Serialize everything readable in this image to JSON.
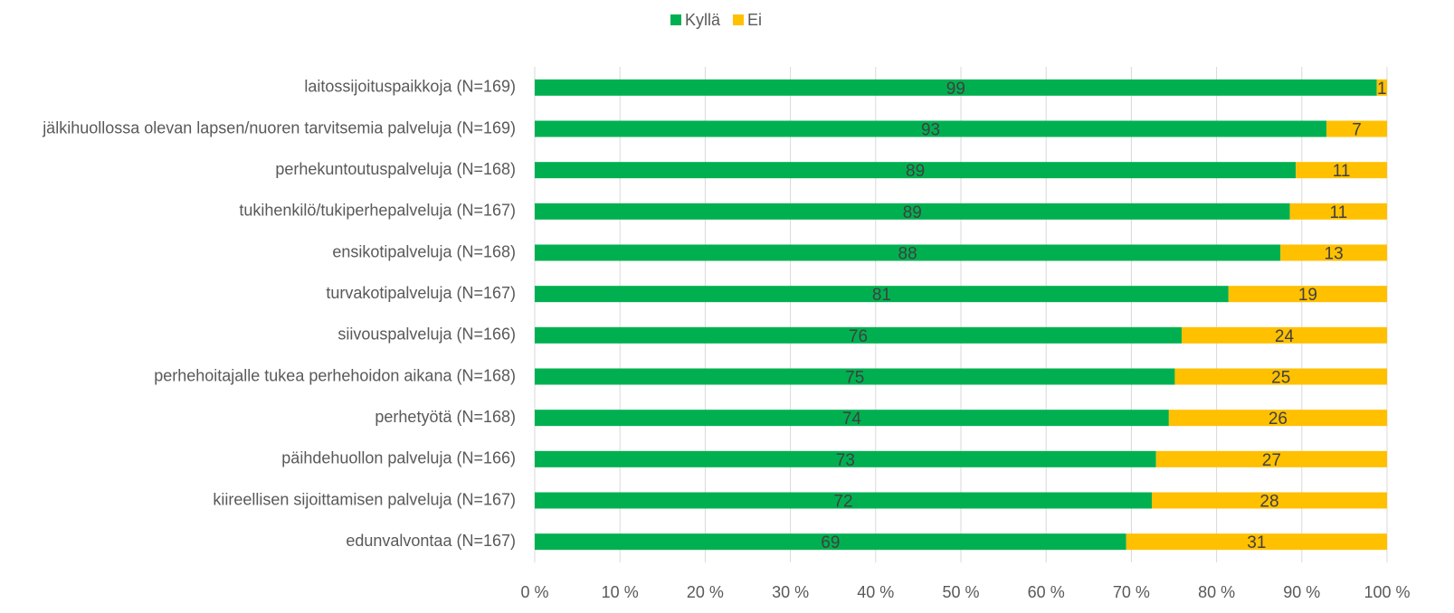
{
  "chart_data": {
    "type": "stacked_bar_horizontal",
    "categories": [
      "laitossijoituspaikkoja (N=169)",
      "jälkihuollossa olevan lapsen/nuoren tarvitsemia palveluja (N=169)",
      "perhekuntoutuspalveluja (N=168)",
      "tukihenkilö/tukiperhepalveluja (N=167)",
      "ensikotipalveluja (N=168)",
      "turvakotipalveluja (N=167)",
      "siivouspalveluja (N=166)",
      "perhehoitajalle tukea perhehoidon aikana (N=168)",
      "perhetyötä (N=168)",
      "päihdehuollon palveluja (N=166)",
      "kiireellisen sijoittamisen palveluja (N=167)",
      "edunvalvontaa (N=167)"
    ],
    "series": [
      {
        "name": "Kyllä",
        "color": "#00b050",
        "values": [
          98.8,
          92.9,
          89.3,
          88.6,
          87.5,
          81.4,
          75.9,
          75.1,
          74.4,
          72.9,
          72.4,
          69.4
        ],
        "value_labels": [
          "99",
          "93",
          "89",
          "89",
          "88",
          "81",
          "76",
          "75",
          "74",
          "73",
          "72",
          "69"
        ]
      },
      {
        "name": "Ei",
        "color": "#ffc000",
        "values": [
          1.2,
          7.1,
          10.7,
          11.4,
          12.5,
          18.6,
          24.1,
          24.9,
          25.6,
          27.1,
          27.6,
          30.6
        ],
        "value_labels": [
          "1",
          "7",
          "11",
          "11",
          "13",
          "19",
          "24",
          "25",
          "26",
          "27",
          "28",
          "31"
        ]
      }
    ],
    "xlim": [
      0,
      100
    ],
    "xticks": [
      {
        "value": 0,
        "label": "0 %"
      },
      {
        "value": 10,
        "label": "10 %"
      },
      {
        "value": 20,
        "label": "20 %"
      },
      {
        "value": 30,
        "label": "30 %"
      },
      {
        "value": 40,
        "label": "40 %"
      },
      {
        "value": 50,
        "label": "50 %"
      },
      {
        "value": 60,
        "label": "60 %"
      },
      {
        "value": 70,
        "label": "70 %"
      },
      {
        "value": 80,
        "label": "80 %"
      },
      {
        "value": 90,
        "label": "90 %"
      },
      {
        "value": 100,
        "label": "100 %"
      }
    ],
    "grid": true,
    "legend": "top"
  }
}
